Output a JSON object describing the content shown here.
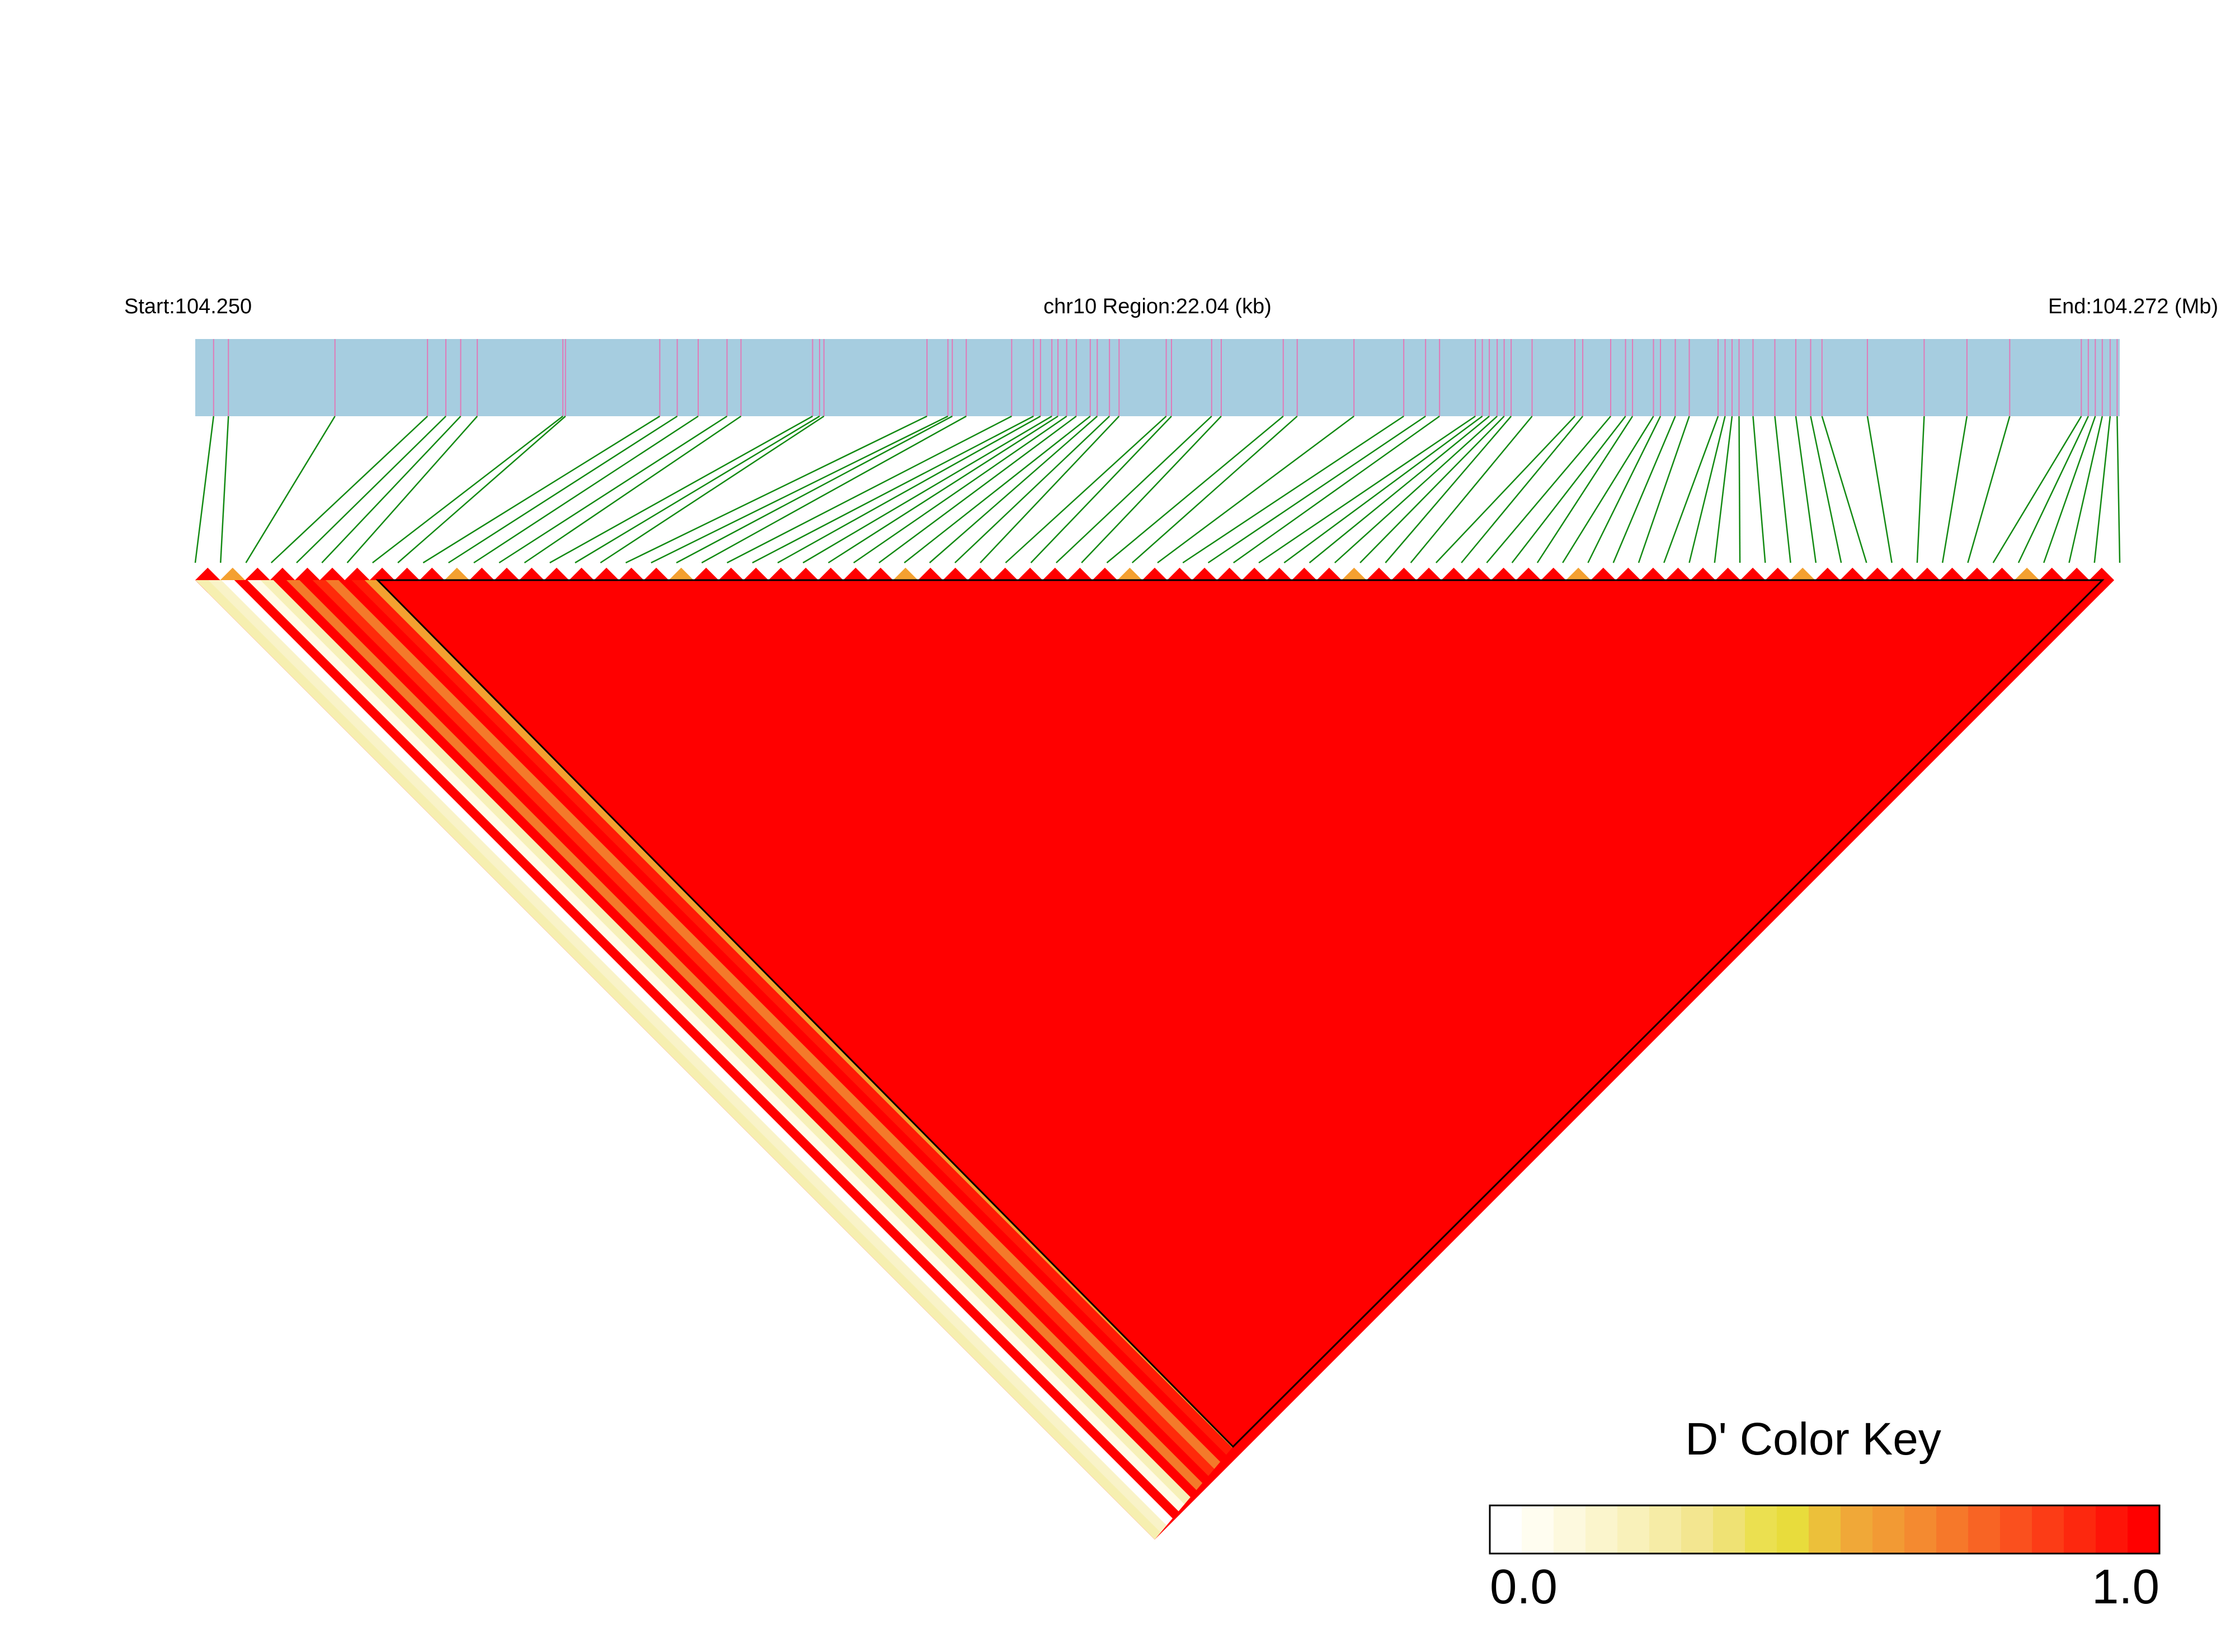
{
  "header": {
    "start": "Start:104.250",
    "region": "chr10 Region:22.04 (kb)",
    "end": "End:104.272 (Mb)"
  },
  "snps": {
    "xlim": [
      0,
      22.04
    ],
    "positions": [
      0.21,
      0.38,
      1.6,
      2.66,
      2.87,
      3.04,
      3.23,
      4.21,
      4.24,
      5.32,
      5.52,
      5.76,
      6.09,
      6.25,
      7.07,
      7.15,
      7.2,
      8.38,
      8.62,
      8.67,
      8.83,
      9.35,
      9.6,
      9.68,
      9.81,
      9.88,
      9.98,
      10.09,
      10.25,
      10.33,
      10.47,
      10.58,
      11.12,
      11.18,
      11.64,
      11.75,
      12.46,
      12.62,
      13.27,
      13.84,
      14.09,
      14.25,
      14.66,
      14.74,
      14.82,
      14.91,
      14.99,
      15.07,
      15.31,
      15.8,
      15.89,
      16.21,
      16.38,
      16.46,
      16.7,
      16.78,
      16.95,
      17.11,
      17.44,
      17.52,
      17.6,
      17.68,
      17.84,
      18.09,
      18.33,
      18.5,
      18.63,
      19.15,
      19.8,
      20.29,
      20.78,
      21.6,
      21.68,
      21.76,
      21.84,
      21.93,
      22.01
    ]
  },
  "color_key": {
    "title": "D' Color Key",
    "ticks": [
      {
        "value": 0,
        "label": "0.0"
      },
      {
        "value": 1,
        "label": "1.0"
      }
    ],
    "colors": [
      "#ffffff",
      "#fffdf0",
      "#fdf9de",
      "#fbf5cc",
      "#f9f1ba",
      "#f6eca6",
      "#f3e690",
      "#efe274",
      "#ebe050",
      "#e8dc3c",
      "#ecc03a",
      "#f0a838",
      "#f29a34",
      "#f48a30",
      "#f6782a",
      "#f86424",
      "#fa501e",
      "#fc3c16",
      "#fd280e",
      "#fe1408",
      "#ff0000"
    ]
  }
}
